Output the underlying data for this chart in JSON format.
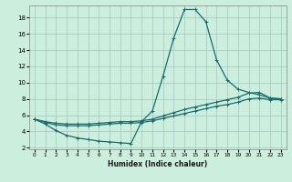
{
  "xlabel": "Humidex (Indice chaleur)",
  "bg_color": "#cceedd",
  "grid_color": "#aacccc",
  "line_color": "#1a6b6b",
  "xlim": [
    -0.5,
    23.5
  ],
  "ylim": [
    1.8,
    19.5
  ],
  "xticks": [
    0,
    1,
    2,
    3,
    4,
    5,
    6,
    7,
    8,
    9,
    10,
    11,
    12,
    13,
    14,
    15,
    16,
    17,
    18,
    19,
    20,
    21,
    22,
    23
  ],
  "yticks": [
    2,
    4,
    6,
    8,
    10,
    12,
    14,
    16,
    18
  ],
  "line1_x": [
    0,
    1,
    2,
    3,
    4,
    5,
    6,
    7,
    8,
    9,
    10,
    11,
    12,
    13,
    14,
    15,
    16,
    17,
    18,
    19,
    20,
    21,
    22,
    23
  ],
  "line1_y": [
    5.5,
    4.9,
    4.1,
    3.5,
    3.2,
    3.0,
    2.8,
    2.7,
    2.6,
    2.5,
    5.2,
    6.5,
    10.8,
    15.5,
    19.0,
    19.0,
    17.5,
    12.8,
    10.3,
    9.2,
    8.8,
    8.5,
    8.1,
    8.0
  ],
  "line2_x": [
    0,
    1,
    2,
    3,
    4,
    5,
    6,
    7,
    8,
    9,
    10,
    11,
    12,
    13,
    14,
    15,
    16,
    17,
    18,
    19,
    20,
    21,
    22,
    23
  ],
  "line2_y": [
    5.5,
    5.2,
    5.0,
    4.9,
    4.9,
    4.9,
    5.0,
    5.1,
    5.2,
    5.2,
    5.3,
    5.5,
    5.9,
    6.3,
    6.7,
    7.0,
    7.3,
    7.6,
    7.9,
    8.2,
    8.7,
    8.8,
    8.1,
    8.0
  ],
  "line3_x": [
    0,
    1,
    2,
    3,
    4,
    5,
    6,
    7,
    8,
    9,
    10,
    11,
    12,
    13,
    14,
    15,
    16,
    17,
    18,
    19,
    20,
    21,
    22,
    23
  ],
  "line3_y": [
    5.5,
    5.1,
    4.8,
    4.7,
    4.7,
    4.7,
    4.8,
    4.9,
    5.0,
    5.0,
    5.1,
    5.3,
    5.6,
    5.9,
    6.2,
    6.5,
    6.8,
    7.1,
    7.3,
    7.6,
    8.0,
    8.1,
    7.9,
    7.9
  ]
}
